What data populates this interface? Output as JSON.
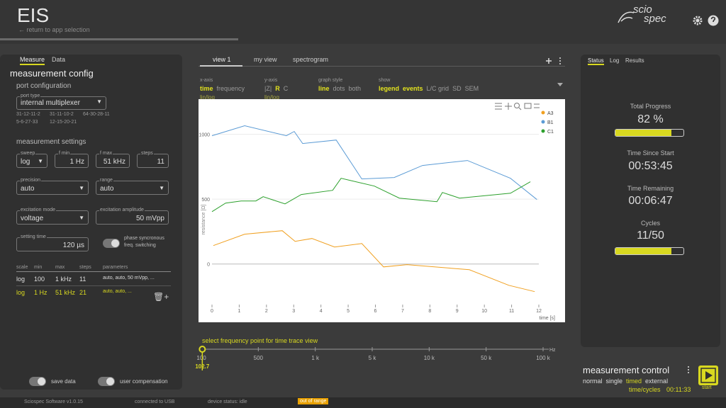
{
  "header": {
    "title": "EIS",
    "back_link": "return to app selection",
    "logo_top": "scio",
    "logo_bottom": "spec"
  },
  "left_panel": {
    "tabs": [
      "Measure",
      "Data"
    ],
    "title": "measurement config",
    "port_section": "port configuration",
    "port_type_label": "port type",
    "port_type": "internal multiplexer",
    "ports": [
      "31-12-11-2",
      "31-11-10-2",
      "64-30-28-11",
      "5-6-27-33",
      "12-15-20-21"
    ],
    "settings_section": "measurement settings",
    "fields": [
      {
        "label": "sweep",
        "value": "log"
      },
      {
        "label": "f min",
        "value": "1 Hz"
      },
      {
        "label": "f max",
        "value": "51 kHz"
      },
      {
        "label": "steps",
        "value": "11"
      },
      {
        "label": "precision",
        "value": "auto"
      },
      {
        "label": "range",
        "value": "auto"
      },
      {
        "label": "excitation mode",
        "value": "voltage"
      },
      {
        "label": "excitation amplitude",
        "value": "50 mVpp"
      },
      {
        "label": "setting time",
        "value": "120 µs"
      }
    ],
    "phase_toggle": [
      "phase syncronous",
      "freq. switching"
    ],
    "table": {
      "header": [
        "scale",
        "min",
        "max",
        "steps",
        "parameters"
      ],
      "rows": [
        [
          "log",
          "100",
          "1 kHz",
          "11",
          "auto, auto, 50 mVpp, ..."
        ],
        [
          "log",
          "1 Hz",
          "51 kHz",
          "21",
          "auto, auto, ..."
        ]
      ]
    },
    "footer_toggles": [
      "save data",
      "user compensation"
    ]
  },
  "center": {
    "tabs": [
      "view 1",
      "my view",
      "spectrogram"
    ],
    "option_groups": [
      {
        "label": "x-axis",
        "options": [
          "time",
          "frequency"
        ],
        "active": [
          0
        ],
        "scale": "lin/log"
      },
      {
        "label": "y-axis",
        "options": [
          "|Z|",
          "R",
          "C"
        ],
        "active": [
          1
        ],
        "scale": "lin/log"
      },
      {
        "label": "graph style",
        "options": [
          "line",
          "dots",
          "both"
        ],
        "active": [
          0
        ]
      },
      {
        "label": "show",
        "options": [
          "legend",
          "events",
          "L/C grid",
          "SD",
          "SEM"
        ],
        "active": [
          0,
          1
        ]
      }
    ]
  },
  "chart_data": {
    "type": "line",
    "x_label": "time [s]",
    "y_label": "resistance [Ω]",
    "xlim": [
      0,
      12
    ],
    "xticks": [
      0,
      1,
      2,
      3,
      4,
      5,
      6,
      7,
      8,
      9,
      10,
      11,
      12
    ],
    "ylim": [
      -280,
      1200
    ],
    "yticks": [
      0,
      500,
      1000
    ],
    "grid": true,
    "legend_position": "top-right",
    "series": [
      {
        "name": "A3",
        "color": "#f0a020",
        "x": [
          0.05,
          1.2,
          2.58,
          3.05,
          3.67,
          4.5,
          5.5,
          6.3,
          7.16,
          9.45,
          10.9,
          11.85
        ],
        "values": [
          142,
          230,
          257,
          175,
          197,
          131,
          158,
          -22,
          -5,
          -44,
          -164,
          -213
        ]
      },
      {
        "name": "B1",
        "color": "#5b9bd5",
        "x": [
          0,
          1.2,
          2.73,
          3.02,
          3.33,
          4.56,
          5.5,
          6.69,
          7.73,
          9.38,
          10.96,
          11.93
        ],
        "values": [
          989,
          1066,
          989,
          1022,
          929,
          956,
          656,
          667,
          760,
          798,
          661,
          497
        ]
      },
      {
        "name": "C1",
        "color": "#2ca02c",
        "x": [
          0,
          0.5,
          1.07,
          1.61,
          1.88,
          2.68,
          3.28,
          4.43,
          4.74,
          5.96,
          6.88,
          8.26,
          8.46,
          9.09,
          10.96,
          11.69
        ],
        "values": [
          404,
          470,
          486,
          486,
          519,
          464,
          536,
          568,
          661,
          601,
          508,
          481,
          552,
          508,
          546,
          634
        ]
      }
    ]
  },
  "slider": {
    "label": "select frequency point for time trace view",
    "unit": "Hz",
    "ticks": [
      100,
      500,
      {
        "value": 1000,
        "label": "1 k"
      },
      {
        "value": 5000,
        "label": "5 k"
      },
      {
        "value": 10000,
        "label": "10 k"
      },
      {
        "value": 50000,
        "label": "50 k"
      },
      {
        "value": 100000,
        "label": "100 k"
      }
    ],
    "value": 102.7
  },
  "right_panel": {
    "tabs": [
      "Status",
      "Log",
      "Results"
    ],
    "total_progress": {
      "label": "Total Progress",
      "value": 82,
      "value_label": "82 %"
    },
    "time_since_start": {
      "label": "Time Since Start",
      "value": "00:53:45"
    },
    "time_remaining": {
      "label": "Time Remaining",
      "value": "00:06:47"
    },
    "cycles": {
      "label": "Cycles",
      "value": "11/50"
    }
  },
  "control": {
    "title": "measurement control",
    "modes": [
      "normal",
      "single",
      "timed",
      "external"
    ],
    "active_mode": 2,
    "time_label": "time/cycles",
    "time_value": "00:11:33",
    "start": "start"
  },
  "footer": {
    "version": "Sciospec Software v1.0.15",
    "connection": "connected to USB",
    "status": "device status: idle",
    "warning": "out of range"
  }
}
